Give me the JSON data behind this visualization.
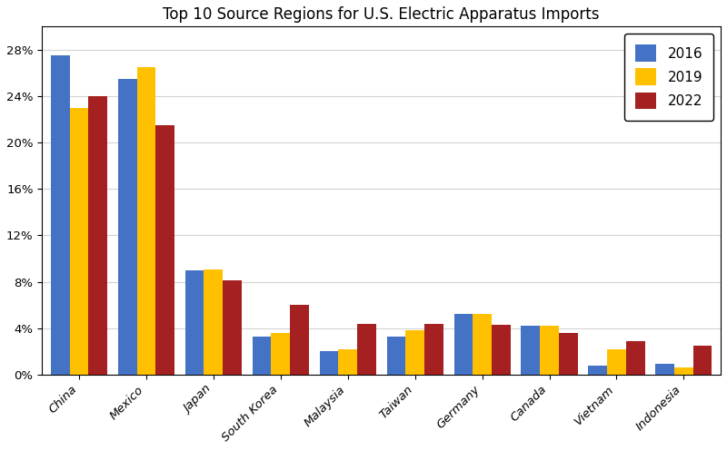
{
  "title": "Top 10 Source Regions for U.S. Electric Apparatus Imports",
  "categories": [
    "China",
    "Mexico",
    "Japan",
    "South Korea",
    "Malaysia",
    "Taiwan",
    "Germany",
    "Canada",
    "Vietnam",
    "Indonesia"
  ],
  "series": {
    "2016": [
      27.5,
      25.5,
      9.0,
      3.3,
      2.0,
      3.3,
      5.2,
      4.2,
      0.8,
      0.9
    ],
    "2019": [
      23.0,
      26.5,
      9.1,
      3.6,
      2.2,
      3.8,
      5.2,
      4.2,
      2.2,
      0.6
    ],
    "2022": [
      24.0,
      21.5,
      8.1,
      6.0,
      4.4,
      4.4,
      4.3,
      3.6,
      2.9,
      2.5
    ]
  },
  "colors": {
    "2016": "#4472C4",
    "2019": "#FFC000",
    "2022": "#A52020"
  },
  "ylim": [
    0,
    30
  ],
  "yticks": [
    0,
    4,
    8,
    12,
    16,
    20,
    24,
    28
  ],
  "ytick_labels": [
    "0%",
    "4%",
    "8%",
    "12%",
    "16%",
    "20%",
    "24%",
    "28%"
  ],
  "legend_labels": [
    "2016",
    "2019",
    "2022"
  ],
  "bar_width": 0.28,
  "title_fontsize": 12,
  "tick_fontsize": 9.5,
  "legend_fontsize": 11,
  "figsize": [
    8.0,
    4.96
  ],
  "dpi": 100
}
